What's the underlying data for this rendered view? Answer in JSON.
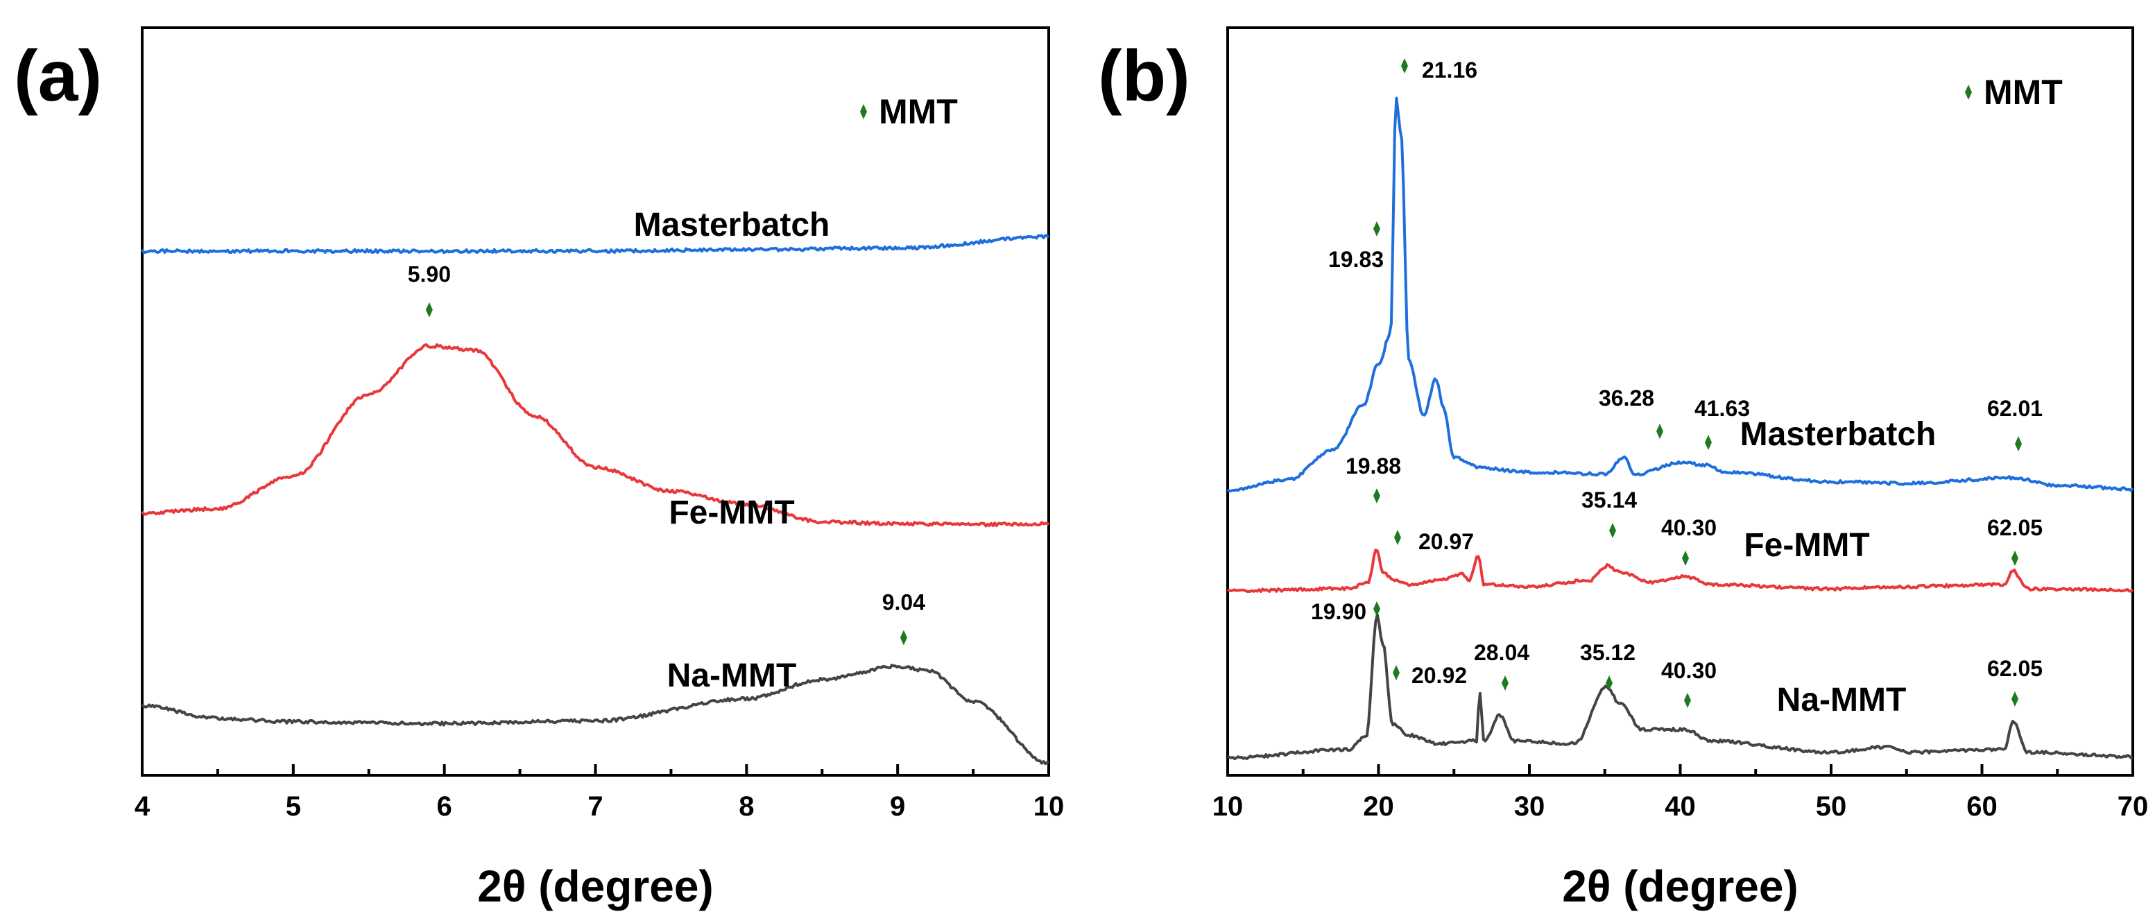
{
  "colors": {
    "masterbatch": "#1e6fdc",
    "fe_mmt": "#e8383c",
    "na_mmt": "#444444",
    "marker": "#1f7a1f"
  },
  "chart_data": [
    {
      "panel": "(a)",
      "type": "line",
      "xlabel": "2θ (degree)",
      "ylabel": "",
      "xlim": [
        4,
        10
      ],
      "x_ticks": [
        4,
        5,
        6,
        7,
        8,
        9,
        10
      ],
      "x_tick_labels": [
        "4",
        "5",
        "6",
        "7",
        "8",
        "9",
        "10"
      ],
      "y_ticks_visible": false,
      "grid": false,
      "legend": {
        "text": "MMT",
        "placement": "top-right",
        "marker": "green diamond"
      },
      "series": [
        {
          "name": "Masterbatch",
          "color": "#1e6fdc",
          "points": [
            [
              4.0,
              0.0
            ],
            [
              5.0,
              0.0
            ],
            [
              6.0,
              0.0
            ],
            [
              7.0,
              0.0
            ],
            [
              8.0,
              0.01
            ],
            [
              9.0,
              0.02
            ],
            [
              10.0,
              0.1
            ]
          ]
        },
        {
          "name": "Fe-MMT",
          "color": "#e8383c",
          "points": [
            [
              4.0,
              0.0
            ],
            [
              4.5,
              0.05
            ],
            [
              5.0,
              0.42
            ],
            [
              5.5,
              1.35
            ],
            [
              5.9,
              1.9
            ],
            [
              6.2,
              1.85
            ],
            [
              6.6,
              1.1
            ],
            [
              7.0,
              0.52
            ],
            [
              7.5,
              0.25
            ],
            [
              8.0,
              0.1
            ],
            [
              8.5,
              -0.1
            ],
            [
              9.0,
              -0.12
            ],
            [
              9.5,
              -0.13
            ],
            [
              10.0,
              -0.12
            ]
          ]
        },
        {
          "name": "Na-MMT",
          "color": "#444444",
          "points": [
            [
              4.0,
              0.0
            ],
            [
              4.5,
              -0.14
            ],
            [
              5.0,
              -0.18
            ],
            [
              6.0,
              -0.2
            ],
            [
              7.0,
              -0.17
            ],
            [
              8.0,
              0.08
            ],
            [
              8.5,
              0.3
            ],
            [
              9.0,
              0.45
            ],
            [
              9.2,
              0.4
            ],
            [
              9.5,
              0.05
            ],
            [
              10.0,
              -0.65
            ]
          ]
        }
      ],
      "peaks": [
        {
          "series": "Fe-MMT",
          "x": 5.9,
          "label": "5.90"
        },
        {
          "series": "Na-MMT",
          "x": 9.04,
          "label": "9.04"
        }
      ]
    },
    {
      "panel": "(b)",
      "type": "line",
      "xlabel": "2θ (degree)",
      "ylabel": "",
      "xlim": [
        10,
        70
      ],
      "x_ticks": [
        10,
        20,
        30,
        40,
        50,
        60,
        70
      ],
      "x_tick_labels": [
        "10",
        "20",
        "30",
        "40",
        "50",
        "60",
        "70"
      ],
      "y_ticks_visible": false,
      "grid": false,
      "legend": {
        "text": "MMT",
        "placement": "top-right",
        "marker": "green diamond"
      },
      "series": [
        {
          "name": "Masterbatch",
          "color": "#1e6fdc",
          "points": [
            [
              10,
              0
            ],
            [
              14,
              0.3
            ],
            [
              17,
              1.1
            ],
            [
              19,
              2.3
            ],
            [
              20,
              3.4
            ],
            [
              20.8,
              4.2
            ],
            [
              21.16,
              10.5
            ],
            [
              21.5,
              9.5
            ],
            [
              22,
              3.5
            ],
            [
              23,
              2.0
            ],
            [
              23.8,
              3.0
            ],
            [
              24.3,
              2.2
            ],
            [
              25,
              0.9
            ],
            [
              27,
              0.6
            ],
            [
              30,
              0.5
            ],
            [
              35,
              0.45
            ],
            [
              36.28,
              0.9
            ],
            [
              37,
              0.45
            ],
            [
              40,
              0.75
            ],
            [
              41.63,
              0.7
            ],
            [
              43,
              0.5
            ],
            [
              50,
              0.25
            ],
            [
              55,
              0.2
            ],
            [
              62,
              0.35
            ],
            [
              65,
              0.15
            ],
            [
              70,
              0.05
            ]
          ]
        },
        {
          "name": "Fe-MMT",
          "color": "#e8383c",
          "points": [
            [
              10,
              0
            ],
            [
              18,
              0.1
            ],
            [
              19.3,
              0.4
            ],
            [
              19.88,
              2.0
            ],
            [
              20.3,
              0.9
            ],
            [
              20.97,
              0.55
            ],
            [
              22,
              0.3
            ],
            [
              24,
              0.5
            ],
            [
              25.5,
              0.8
            ],
            [
              26,
              0.5
            ],
            [
              26.6,
              1.7
            ],
            [
              27,
              0.3
            ],
            [
              30,
              0.2
            ],
            [
              34,
              0.5
            ],
            [
              35.14,
              1.2
            ],
            [
              36,
              0.9
            ],
            [
              38,
              0.4
            ],
            [
              40.3,
              0.7
            ],
            [
              42,
              0.3
            ],
            [
              50,
              0.1
            ],
            [
              55,
              0.2
            ],
            [
              61.5,
              0.3
            ],
            [
              62.05,
              1.0
            ],
            [
              63,
              0.1
            ],
            [
              70,
              0.05
            ]
          ]
        },
        {
          "name": "Na-MMT",
          "color": "#444444",
          "points": [
            [
              10,
              0
            ],
            [
              18,
              0.3
            ],
            [
              19.2,
              0.8
            ],
            [
              19.9,
              5.0
            ],
            [
              20.3,
              4.0
            ],
            [
              20.92,
              1.2
            ],
            [
              22,
              0.8
            ],
            [
              24,
              0.5
            ],
            [
              26.5,
              0.6
            ],
            [
              26.7,
              2.3
            ],
            [
              27,
              0.6
            ],
            [
              28.04,
              1.5
            ],
            [
              29,
              0.6
            ],
            [
              33,
              0.5
            ],
            [
              35.12,
              2.5
            ],
            [
              36,
              1.9
            ],
            [
              37.5,
              1.0
            ],
            [
              40.3,
              1.0
            ],
            [
              42,
              0.6
            ],
            [
              50,
              0.2
            ],
            [
              54,
              0.4
            ],
            [
              55,
              0.2
            ],
            [
              61.5,
              0.3
            ],
            [
              62.05,
              1.3
            ],
            [
              63,
              0.2
            ],
            [
              70,
              0.05
            ]
          ]
        }
      ],
      "peaks": [
        {
          "series": "Masterbatch",
          "x": 19.83,
          "label": "19.83"
        },
        {
          "series": "Masterbatch",
          "x": 21.16,
          "label": "21.16"
        },
        {
          "series": "Masterbatch",
          "x": 36.28,
          "label": "36.28"
        },
        {
          "series": "Masterbatch",
          "x": 41.63,
          "label": "41.63"
        },
        {
          "series": "Masterbatch",
          "x": 62.01,
          "label": "62.01"
        },
        {
          "series": "Fe-MMT",
          "x": 19.88,
          "label": "19.88"
        },
        {
          "series": "Fe-MMT",
          "x": 20.97,
          "label": "20.97"
        },
        {
          "series": "Fe-MMT",
          "x": 35.14,
          "label": "35.14"
        },
        {
          "series": "Fe-MMT",
          "x": 40.3,
          "label": "40.30"
        },
        {
          "series": "Fe-MMT",
          "x": 62.05,
          "label": "62.05"
        },
        {
          "series": "Na-MMT",
          "x": 19.9,
          "label": "19.90"
        },
        {
          "series": "Na-MMT",
          "x": 20.92,
          "label": "20.92"
        },
        {
          "series": "Na-MMT",
          "x": 28.04,
          "label": "28.04"
        },
        {
          "series": "Na-MMT",
          "x": 35.12,
          "label": "35.12"
        },
        {
          "series": "Na-MMT",
          "x": 40.3,
          "label": "40.30"
        },
        {
          "series": "Na-MMT",
          "x": 62.05,
          "label": "62.05"
        }
      ]
    }
  ]
}
